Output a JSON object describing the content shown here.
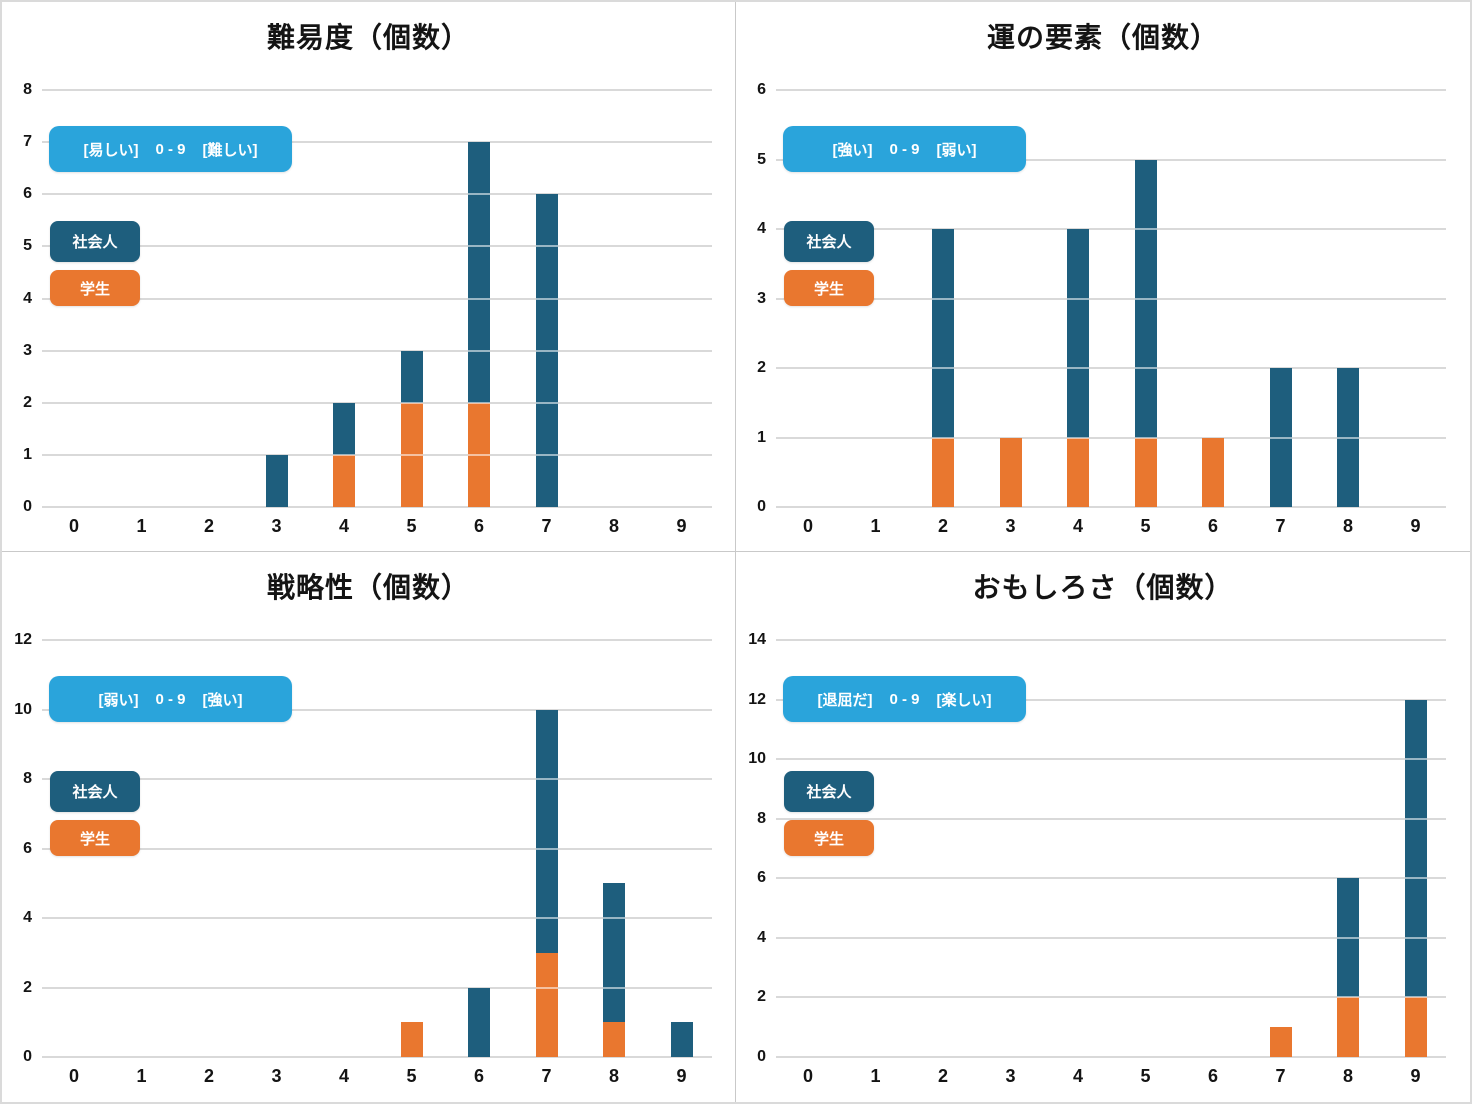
{
  "style": {
    "scale_badge_color": "#2aa4db",
    "adult_color": "#1e5e7d",
    "student_color": "#e9772f",
    "gridline_color": "#d9d9d9",
    "text_color": "#141414"
  },
  "chart_data": [
    {
      "type": "bar",
      "stacked": true,
      "title": "難易度（個数）",
      "scale_note": {
        "left": "[易しい]",
        "range": "0 - 9",
        "right": "[難しい]"
      },
      "categories": [
        "0",
        "1",
        "2",
        "3",
        "4",
        "5",
        "6",
        "7",
        "8",
        "9"
      ],
      "series": [
        {
          "name": "学生",
          "color": "#e9772f",
          "values": [
            0,
            0,
            0,
            0,
            1,
            2,
            2,
            0,
            0,
            0
          ]
        },
        {
          "name": "社会人",
          "color": "#1e5e7d",
          "values": [
            0,
            0,
            0,
            1,
            1,
            1,
            5,
            6,
            0,
            0
          ]
        }
      ],
      "ylim": [
        0,
        8
      ],
      "ytick_step": 1,
      "grid": true,
      "legend_position": "upper-left-inside"
    },
    {
      "type": "bar",
      "stacked": true,
      "title": "運の要素（個数）",
      "scale_note": {
        "left": "[強い]",
        "range": "0 - 9",
        "right": "[弱い]"
      },
      "categories": [
        "0",
        "1",
        "2",
        "3",
        "4",
        "5",
        "6",
        "7",
        "8",
        "9"
      ],
      "series": [
        {
          "name": "学生",
          "color": "#e9772f",
          "values": [
            0,
            0,
            1,
            1,
            1,
            1,
            1,
            0,
            0,
            0
          ]
        },
        {
          "name": "社会人",
          "color": "#1e5e7d",
          "values": [
            0,
            0,
            3,
            0,
            3,
            4,
            0,
            2,
            2,
            0
          ]
        }
      ],
      "ylim": [
        0,
        6
      ],
      "ytick_step": 1,
      "grid": true,
      "legend_position": "upper-left-inside"
    },
    {
      "type": "bar",
      "stacked": true,
      "title": "戦略性（個数）",
      "scale_note": {
        "left": "[弱い]",
        "range": "0 - 9",
        "right": "[強い]"
      },
      "categories": [
        "0",
        "1",
        "2",
        "3",
        "4",
        "5",
        "6",
        "7",
        "8",
        "9"
      ],
      "series": [
        {
          "name": "学生",
          "color": "#e9772f",
          "values": [
            0,
            0,
            0,
            0,
            0,
            1,
            0,
            3,
            1,
            0
          ]
        },
        {
          "name": "社会人",
          "color": "#1e5e7d",
          "values": [
            0,
            0,
            0,
            0,
            0,
            0,
            2,
            7,
            4,
            1
          ]
        }
      ],
      "ylim": [
        0,
        12
      ],
      "ytick_step": 2,
      "grid": true,
      "legend_position": "upper-left-inside"
    },
    {
      "type": "bar",
      "stacked": true,
      "title": "おもしろさ（個数）",
      "scale_note": {
        "left": "[退屈だ]",
        "range": "0 - 9",
        "right": "[楽しい]"
      },
      "categories": [
        "0",
        "1",
        "2",
        "3",
        "4",
        "5",
        "6",
        "7",
        "8",
        "9"
      ],
      "series": [
        {
          "name": "学生",
          "color": "#e9772f",
          "values": [
            0,
            0,
            0,
            0,
            0,
            0,
            0,
            1,
            2,
            2
          ]
        },
        {
          "name": "社会人",
          "color": "#1e5e7d",
          "values": [
            0,
            0,
            0,
            0,
            0,
            0,
            0,
            0,
            4,
            10
          ]
        }
      ],
      "ylim": [
        0,
        14
      ],
      "ytick_step": 2,
      "grid": true,
      "legend_position": "upper-left-inside"
    }
  ]
}
